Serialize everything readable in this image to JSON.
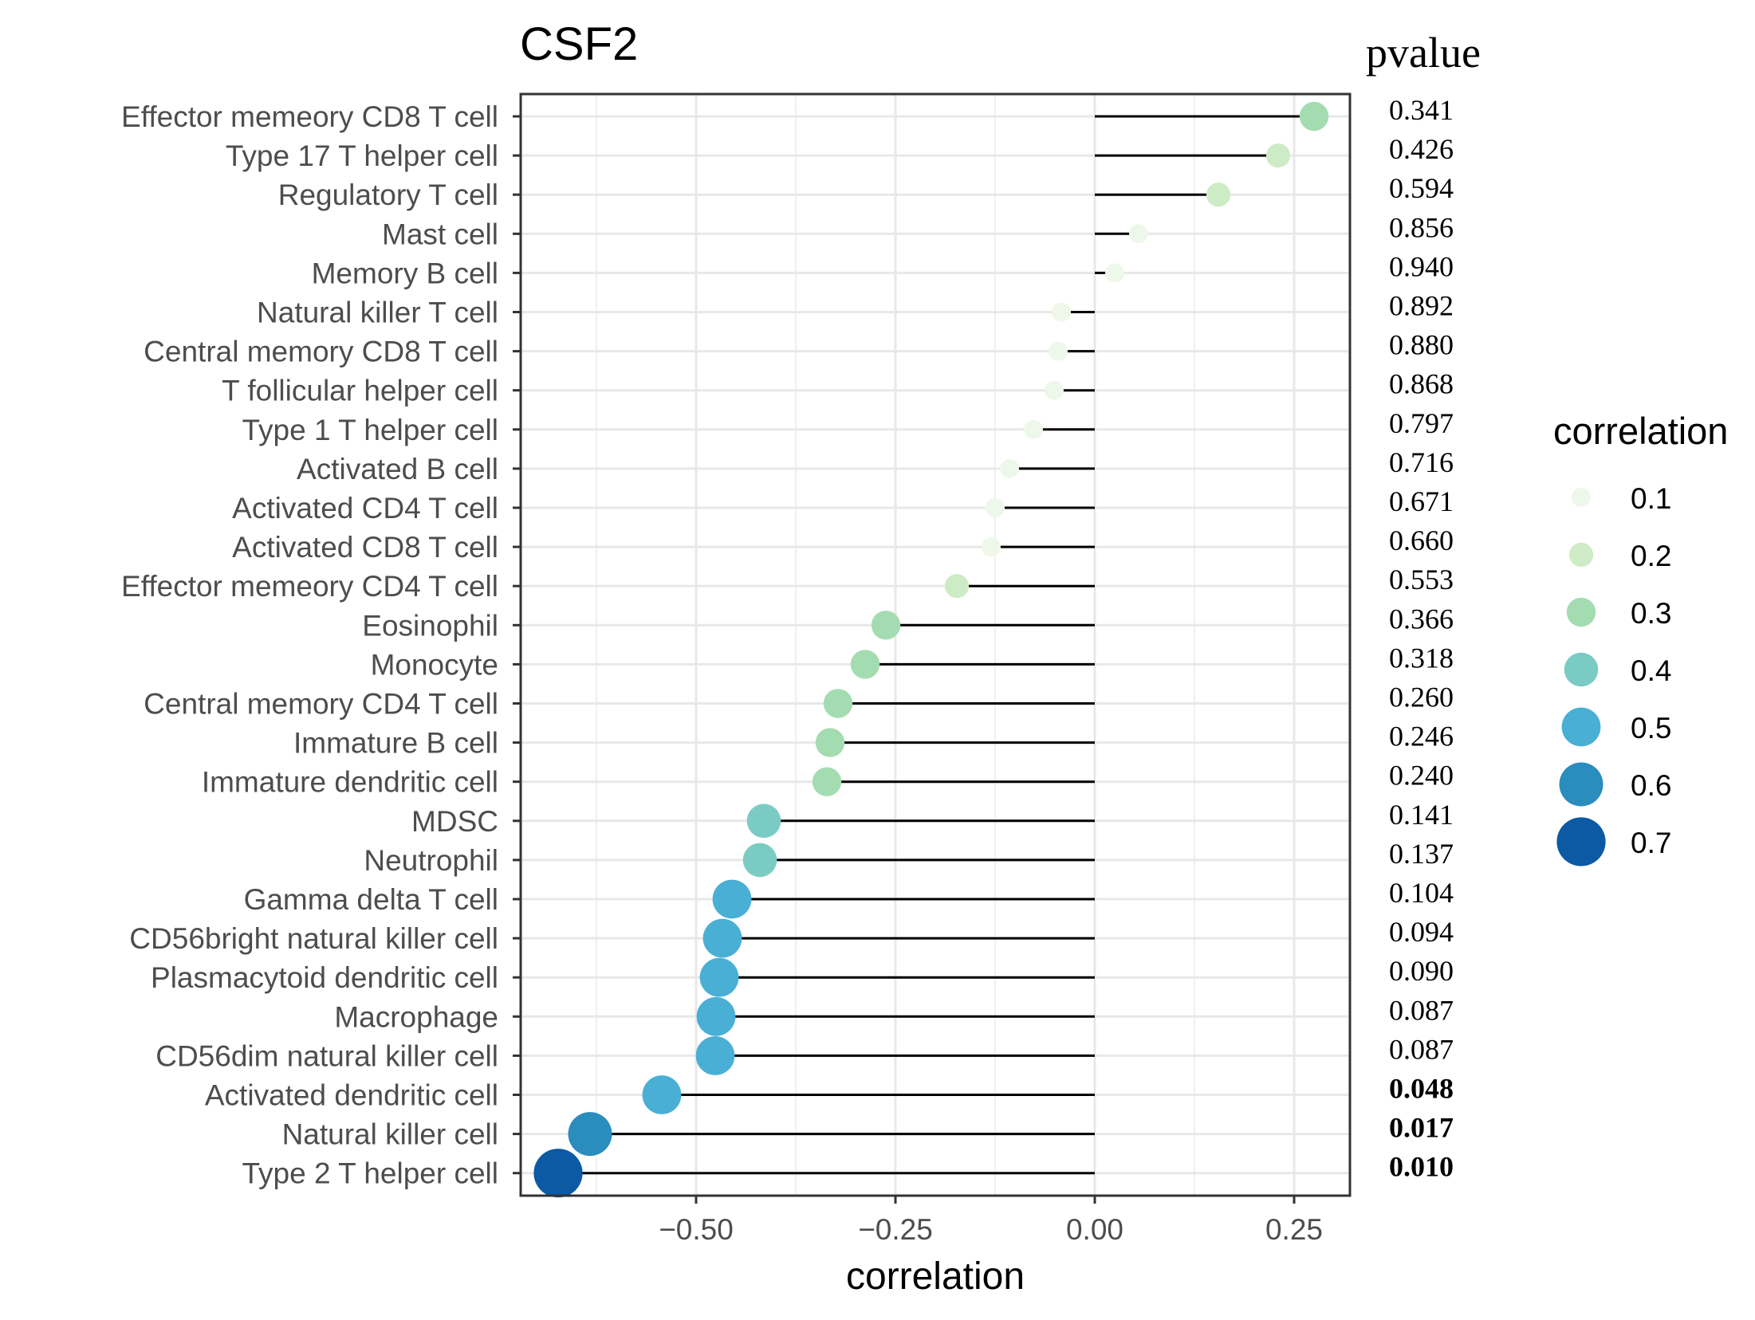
{
  "chart_data": {
    "type": "lollipop",
    "title": "CSF2",
    "xlabel": "correlation",
    "ylabel": "",
    "xlim": [
      -0.72,
      0.32
    ],
    "x_ticks": [
      -0.5,
      -0.25,
      0.0,
      0.25
    ],
    "x_tick_labels": [
      "−0.50",
      "−0.25",
      "0.00",
      "0.25"
    ],
    "grid": true,
    "pvalue_header": "pvalue",
    "legend": {
      "title": "correlation",
      "placement": "right",
      "entries": [
        {
          "label": "0.1",
          "value": 0.1
        },
        {
          "label": "0.2",
          "value": 0.2
        },
        {
          "label": "0.3",
          "value": 0.3
        },
        {
          "label": "0.4",
          "value": 0.4
        },
        {
          "label": "0.5",
          "value": 0.5
        },
        {
          "label": "0.6",
          "value": 0.6
        },
        {
          "label": "0.7",
          "value": 0.7
        }
      ]
    },
    "colors": {
      "0.1": "#eef8ea",
      "0.2": "#cdebc5",
      "0.3": "#a4dcb1",
      "0.4": "#7bcbc5",
      "0.5": "#4aafd5",
      "0.6": "#2b8cbe",
      "0.7": "#0b5aa3"
    },
    "rows": [
      {
        "label": "Effector memeory CD8 T cell",
        "value": 0.275,
        "pvalue": "0.341",
        "significant": false
      },
      {
        "label": "Type 17 T helper cell",
        "value": 0.23,
        "pvalue": "0.426",
        "significant": false
      },
      {
        "label": "Regulatory T cell",
        "value": 0.155,
        "pvalue": "0.594",
        "significant": false
      },
      {
        "label": "Mast cell",
        "value": 0.055,
        "pvalue": "0.856",
        "significant": false
      },
      {
        "label": "Memory B cell",
        "value": 0.025,
        "pvalue": "0.940",
        "significant": false
      },
      {
        "label": "Natural killer T cell",
        "value": -0.042,
        "pvalue": "0.892",
        "significant": false
      },
      {
        "label": "Central memory CD8 T cell",
        "value": -0.046,
        "pvalue": "0.880",
        "significant": false
      },
      {
        "label": "T follicular helper cell",
        "value": -0.051,
        "pvalue": "0.868",
        "significant": false
      },
      {
        "label": "Type 1 T helper cell",
        "value": -0.077,
        "pvalue": "0.797",
        "significant": false
      },
      {
        "label": "Activated B cell",
        "value": -0.107,
        "pvalue": "0.716",
        "significant": false
      },
      {
        "label": "Activated CD4 T cell",
        "value": -0.125,
        "pvalue": "0.671",
        "significant": false
      },
      {
        "label": "Activated CD8 T cell",
        "value": -0.13,
        "pvalue": "0.660",
        "significant": false
      },
      {
        "label": "Effector memeory CD4 T cell",
        "value": -0.173,
        "pvalue": "0.553",
        "significant": false
      },
      {
        "label": "Eosinophil",
        "value": -0.262,
        "pvalue": "0.366",
        "significant": false
      },
      {
        "label": "Monocyte",
        "value": -0.288,
        "pvalue": "0.318",
        "significant": false
      },
      {
        "label": "Central memory CD4 T cell",
        "value": -0.322,
        "pvalue": "0.260",
        "significant": false
      },
      {
        "label": "Immature  B cell",
        "value": -0.332,
        "pvalue": "0.246",
        "significant": false
      },
      {
        "label": "Immature dendritic cell",
        "value": -0.336,
        "pvalue": "0.240",
        "significant": false
      },
      {
        "label": "MDSC",
        "value": -0.415,
        "pvalue": "0.141",
        "significant": false
      },
      {
        "label": "Neutrophil",
        "value": -0.42,
        "pvalue": "0.137",
        "significant": false
      },
      {
        "label": "Gamma delta T cell",
        "value": -0.455,
        "pvalue": "0.104",
        "significant": false
      },
      {
        "label": "CD56bright natural killer cell",
        "value": -0.467,
        "pvalue": "0.094",
        "significant": false
      },
      {
        "label": "Plasmacytoid dendritic cell",
        "value": -0.471,
        "pvalue": "0.090",
        "significant": false
      },
      {
        "label": "Macrophage",
        "value": -0.475,
        "pvalue": "0.087",
        "significant": false
      },
      {
        "label": "CD56dim natural killer cell",
        "value": -0.476,
        "pvalue": "0.087",
        "significant": false
      },
      {
        "label": "Activated dendritic cell",
        "value": -0.543,
        "pvalue": "0.048",
        "significant": true
      },
      {
        "label": "Natural killer cell",
        "value": -0.633,
        "pvalue": "0.017",
        "significant": true
      },
      {
        "label": "Type 2 T helper cell",
        "value": -0.673,
        "pvalue": "0.010",
        "significant": true
      }
    ]
  }
}
